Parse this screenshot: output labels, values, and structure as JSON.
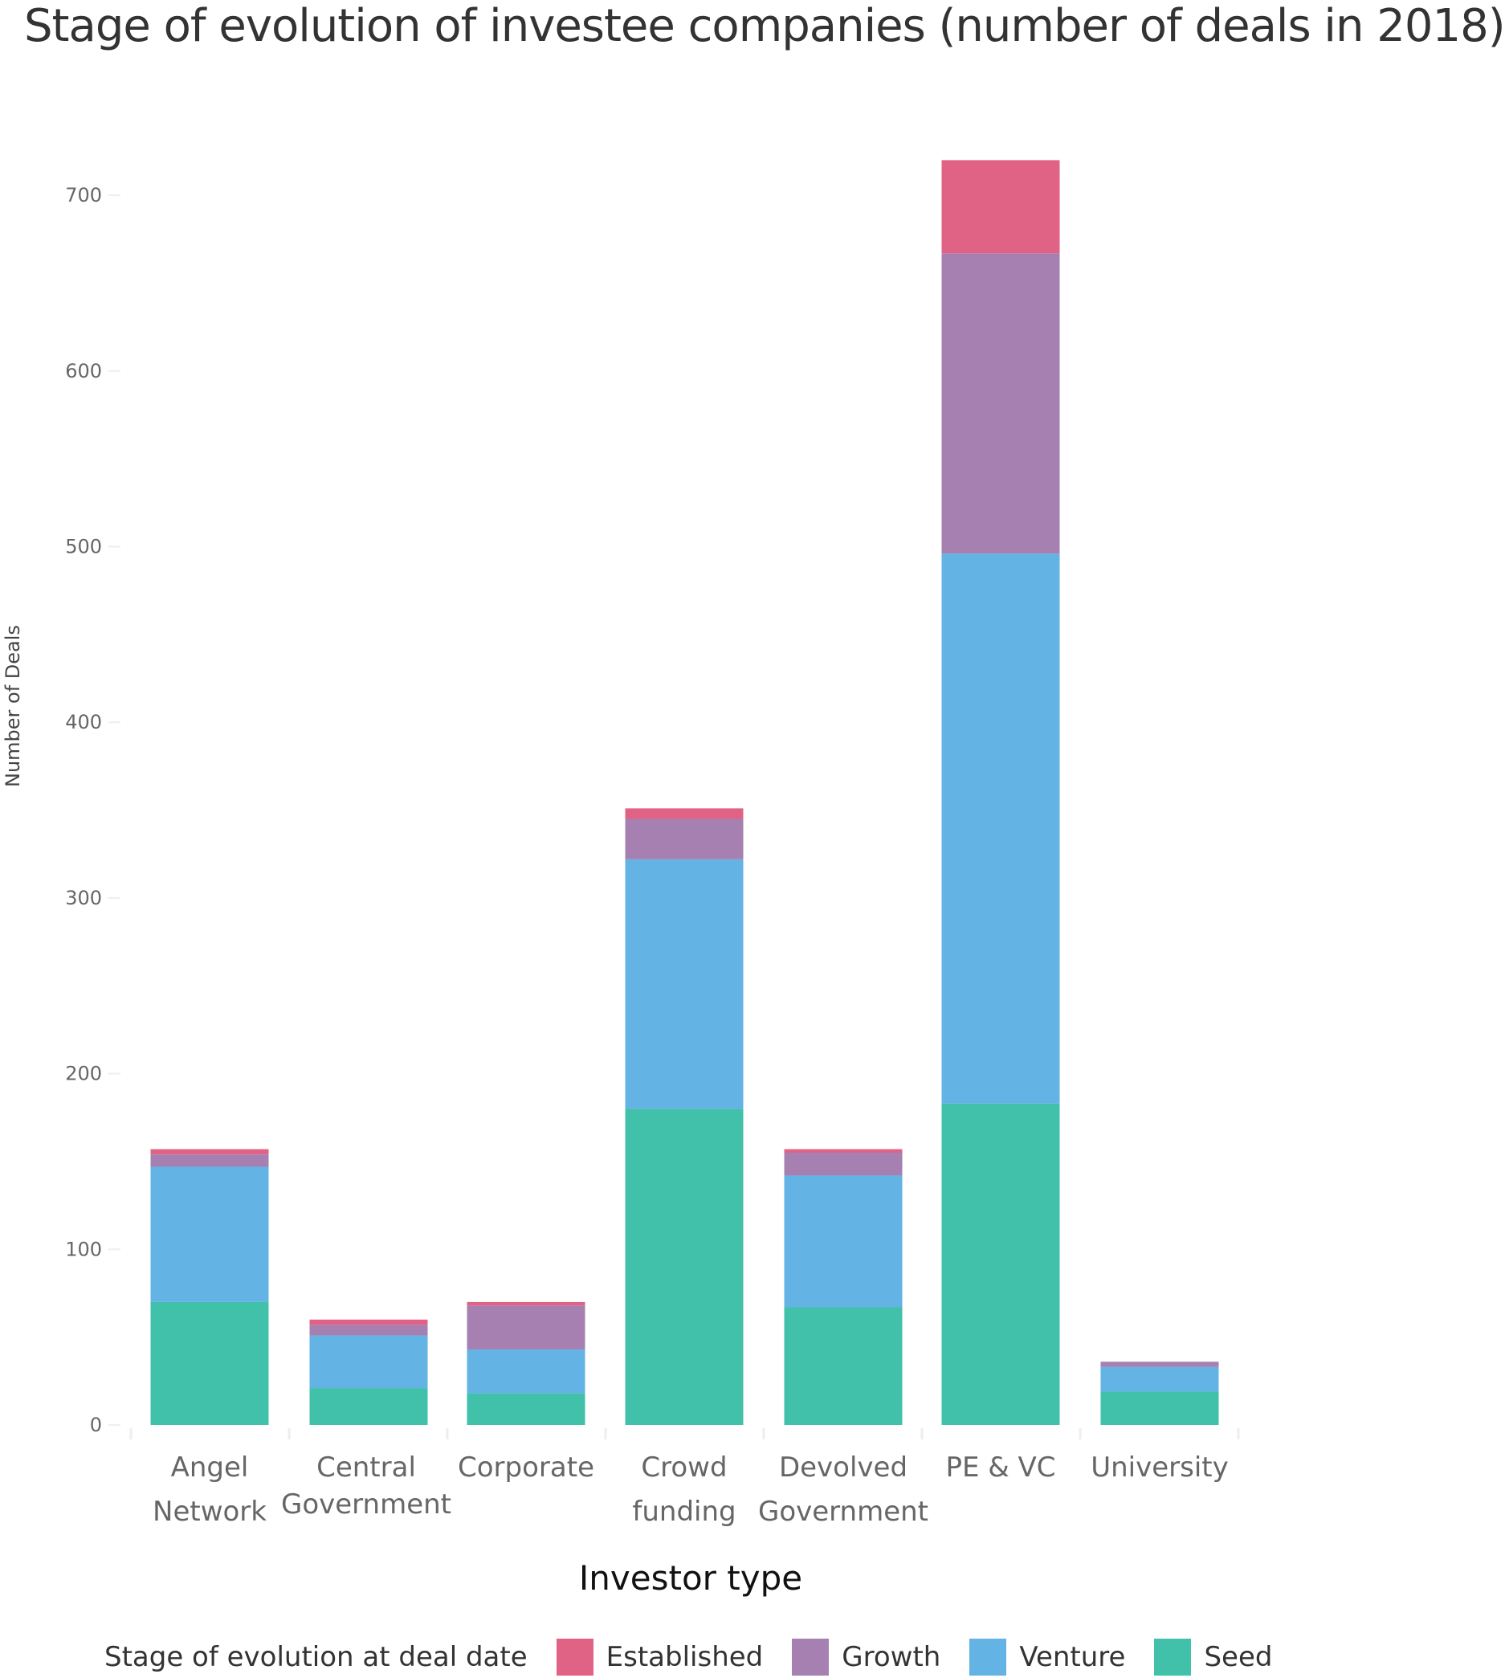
{
  "chart_data": {
    "type": "bar",
    "stacked": true,
    "title": "Stage of evolution of investee companies (number of deals in 2018)",
    "xlabel": "Investor type",
    "ylabel": "Number of Deals",
    "ylim": [
      0,
      720
    ],
    "yticks": [
      0,
      100,
      200,
      300,
      400,
      500,
      600,
      700
    ],
    "grid": false,
    "legend_title": "Stage of evolution at deal date",
    "legend_position": "bottom",
    "categories": [
      [
        "Angel",
        "Network"
      ],
      [
        "Central",
        "Government"
      ],
      [
        "Corporate"
      ],
      [
        "Crowd",
        "funding"
      ],
      [
        "Devolved",
        "Government"
      ],
      [
        "PE & VC"
      ],
      [
        "University"
      ]
    ],
    "series": [
      {
        "name": "Seed",
        "color": "#41c1aa",
        "values": [
          70,
          21,
          18,
          180,
          67,
          183,
          19
        ]
      },
      {
        "name": "Venture",
        "color": "#63b3e4",
        "values": [
          77,
          30,
          25,
          142,
          75,
          313,
          14
        ]
      },
      {
        "name": "Growth",
        "color": "#a580b1",
        "values": [
          7,
          6,
          25,
          23,
          13,
          171,
          3
        ]
      },
      {
        "name": "Established",
        "color": "#e06386",
        "values": [
          3,
          3,
          2,
          6,
          2,
          53,
          0
        ]
      }
    ],
    "legend_order": [
      "Established",
      "Growth",
      "Venture",
      "Seed"
    ]
  }
}
